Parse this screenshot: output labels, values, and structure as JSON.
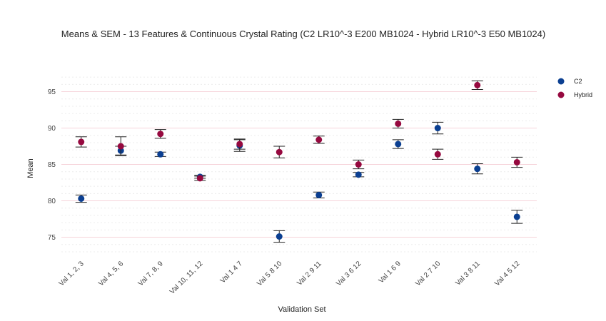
{
  "chart_data": {
    "type": "scatter",
    "title": "Means & SEM - 13 Features & Continuous Crystal Rating (C2 LR10^-3 E200 MB1024 - Hybrid LR10^-3 E50 MB1024)",
    "xlabel": "Validation Set",
    "ylabel": "Mean",
    "categories": [
      "Val 1, 2, 3",
      "Val 4, 5, 6",
      "Val 7, 8, 9",
      "Val 10, 11, 12",
      "Val 1 4 7",
      "Val 5 8 10",
      "Val 2 9 11",
      "Val 3 6 12",
      "Val 1 6 9",
      "Val 2 7 10",
      "Val 3 8 11",
      "Val 4 5 12"
    ],
    "ylim": [
      72.7,
      97.8
    ],
    "yticks": [
      75,
      80,
      85,
      90,
      95
    ],
    "grid": true,
    "legend_position": "top-right",
    "series": [
      {
        "name": "C2",
        "color": "#0b3f91",
        "values": [
          80.3,
          86.9,
          86.4,
          83.3,
          87.6,
          75.1,
          80.8,
          83.6,
          87.8,
          90.0,
          84.4,
          77.8
        ],
        "sem": [
          0.5,
          0.6,
          0.3,
          0.2,
          0.8,
          0.8,
          0.4,
          0.3,
          0.6,
          0.8,
          0.7,
          0.9
        ]
      },
      {
        "name": "Hybrid",
        "color": "#96093f",
        "values": [
          88.1,
          87.5,
          89.2,
          83.1,
          87.8,
          86.7,
          88.4,
          85.0,
          90.6,
          86.4,
          95.9,
          85.3
        ],
        "sem": [
          0.7,
          1.3,
          0.6,
          0.3,
          0.7,
          0.8,
          0.5,
          0.6,
          0.6,
          0.7,
          0.6,
          0.7
        ]
      }
    ]
  }
}
